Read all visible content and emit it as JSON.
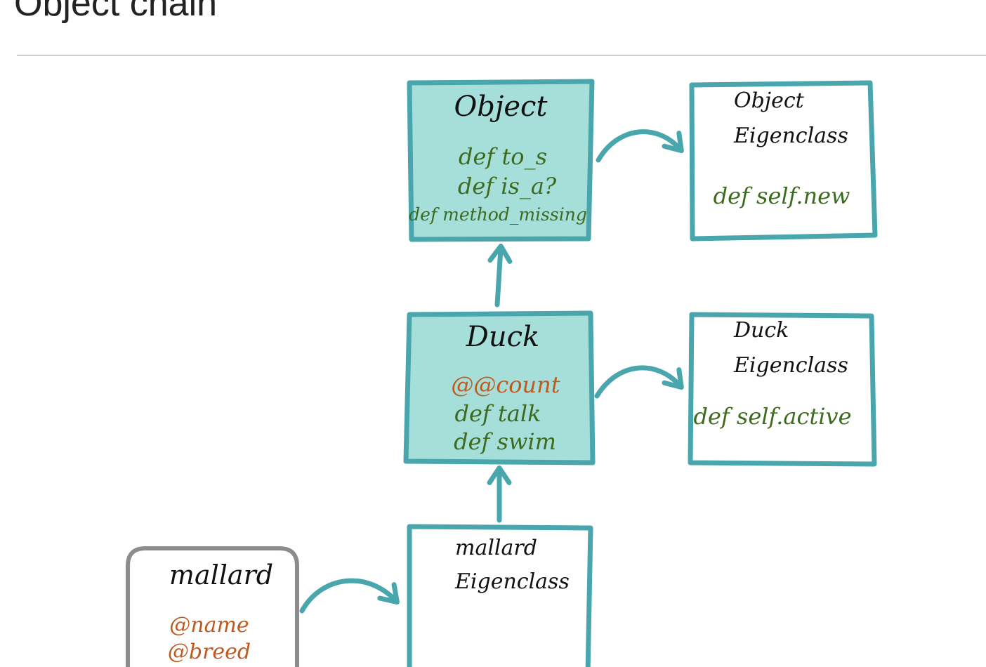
{
  "title": "Object chain",
  "colors": {
    "teal": "#4aa6ad",
    "box_fill": "#a6ded9",
    "method_green": "#3d6b1e",
    "variable_orange": "#c0591d",
    "instance_gray": "#8c8c8c",
    "text_black": "#111111"
  },
  "object_class": {
    "name": "Object",
    "methods": [
      "def to_s",
      "def is_a?",
      "def method_missing"
    ]
  },
  "object_eigenclass": {
    "name_line1": "Object",
    "name_line2": "Eigenclass",
    "methods": [
      "def self.new"
    ]
  },
  "duck_class": {
    "name": "Duck",
    "class_variables": [
      "@@count"
    ],
    "methods": [
      "def talk",
      "def swim"
    ]
  },
  "duck_eigenclass": {
    "name_line1": "Duck",
    "name_line2": "Eigenclass",
    "methods": [
      "def self.active"
    ]
  },
  "mallard_eigenclass": {
    "name_line1": "mallard",
    "name_line2": "Eigenclass"
  },
  "mallard_instance": {
    "name": "mallard",
    "instance_variables": [
      "@name",
      "@breed"
    ]
  }
}
